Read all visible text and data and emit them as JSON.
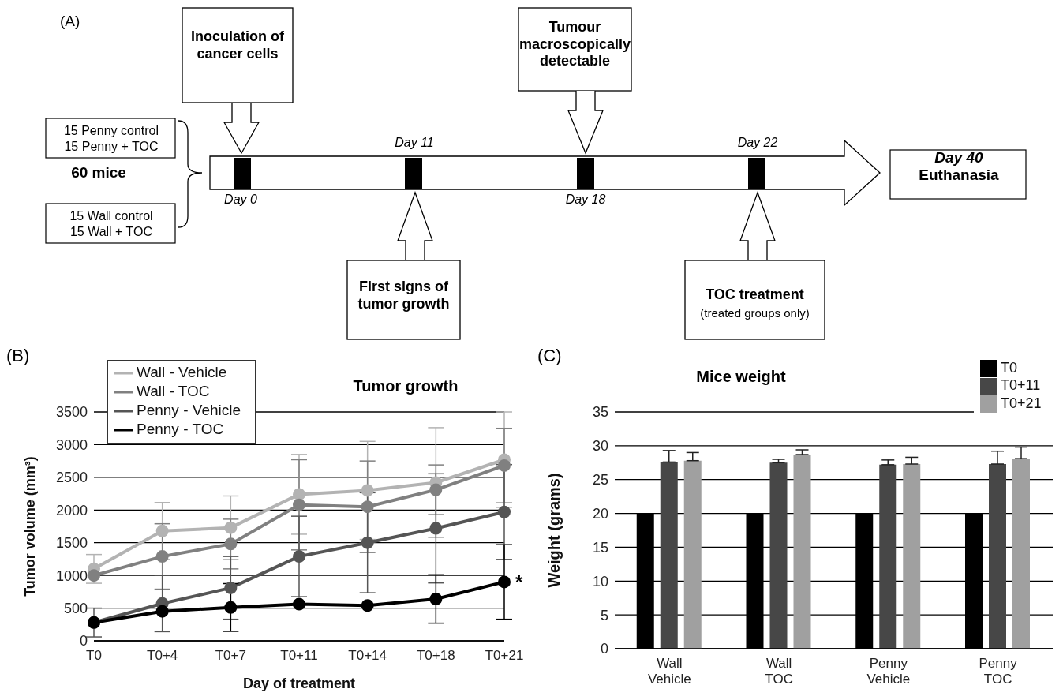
{
  "chart_data": [
    {
      "type": "other",
      "annotations": [
        "(A)",
        "Inoculation of cancer cells",
        "Tumour macroscopically detectable",
        "Day 11",
        "Day 22",
        "15 Penny control",
        "15 Penny + TOC",
        "60 mice",
        "15 Wall control",
        "15 Wall + TOC",
        "Day 0",
        "Day 18",
        "Day 40",
        "Euthanasia",
        "First signs of tumor growth",
        "TOC treatment",
        "(treated groups only)"
      ]
    },
    {
      "type": "line",
      "title": "Tumor growth",
      "xlabel": "Day of treatment",
      "ylabel": "Tumor volume (mm³)",
      "categories": [
        "T0",
        "T0+4",
        "T0+7",
        "T0+11",
        "T0+14",
        "T0+18",
        "T0+21"
      ],
      "series": [
        {
          "name": "Wall - Vehicle",
          "color": "#b3b3b3",
          "values": [
            1100,
            1680,
            1730,
            2240,
            2300,
            2420,
            2770
          ],
          "errors": [
            220,
            435,
            485,
            610,
            750,
            840,
            730
          ]
        },
        {
          "name": "Wall - TOC",
          "color": "#808080",
          "values": [
            1000,
            1290,
            1480,
            2080,
            2050,
            2310,
            2680
          ],
          "errors": [
            null,
            500,
            380,
            690,
            700,
            380,
            570
          ]
        },
        {
          "name": "Penny - Vehicle",
          "color": "#555555",
          "values": [
            280,
            570,
            810,
            1290,
            1500,
            1720,
            1970
          ],
          "errors": [
            220,
            430,
            480,
            615,
            765,
            835,
            725
          ]
        },
        {
          "name": "Penny - TOC",
          "color": "#000000",
          "values": [
            280,
            450,
            510,
            560,
            540,
            640,
            900
          ],
          "errors": [
            null,
            null,
            365,
            null,
            null,
            370,
            570
          ]
        }
      ],
      "ylim": [
        0,
        3500
      ],
      "yticks": [
        0,
        500,
        1000,
        1500,
        2000,
        2500,
        3000,
        3500
      ],
      "grid": "y",
      "legend": "top left",
      "marker": "circle",
      "annotations": [
        "(B)",
        {
          "text": "*",
          "x": "T0+21",
          "y": 900
        }
      ]
    },
    {
      "type": "bar",
      "title": "Mice weight",
      "ylabel": "Weight (grams)",
      "categories": [
        "Wall Vehicle",
        "Wall TOC",
        "Penny Vehicle",
        "Penny TOC"
      ],
      "series": [
        {
          "name": "T0",
          "color": "#000000",
          "values": [
            20,
            20,
            20,
            20
          ]
        },
        {
          "name": "T0+11",
          "color": "#474747",
          "values": [
            27.6,
            27.5,
            27.2,
            27.3
          ],
          "errors": [
            [
              27.6,
              29.3
            ],
            [
              27.5,
              28.0
            ],
            [
              27.2,
              27.9
            ],
            [
              27.3,
              29.2
            ]
          ]
        },
        {
          "name": "T0+21",
          "color": "#a0a0a0",
          "values": [
            27.8,
            28.7,
            27.3,
            28.1
          ],
          "errors": [
            [
              27.8,
              29.0
            ],
            [
              28.7,
              29.4
            ],
            [
              27.3,
              28.3
            ],
            [
              28.1,
              29.8
            ]
          ]
        }
      ],
      "ylim": [
        0,
        35
      ],
      "yticks": [
        0,
        5,
        10,
        15,
        20,
        25,
        30,
        35
      ],
      "grid": "y",
      "legend": "top right",
      "annotations": [
        "(C)"
      ]
    }
  ]
}
